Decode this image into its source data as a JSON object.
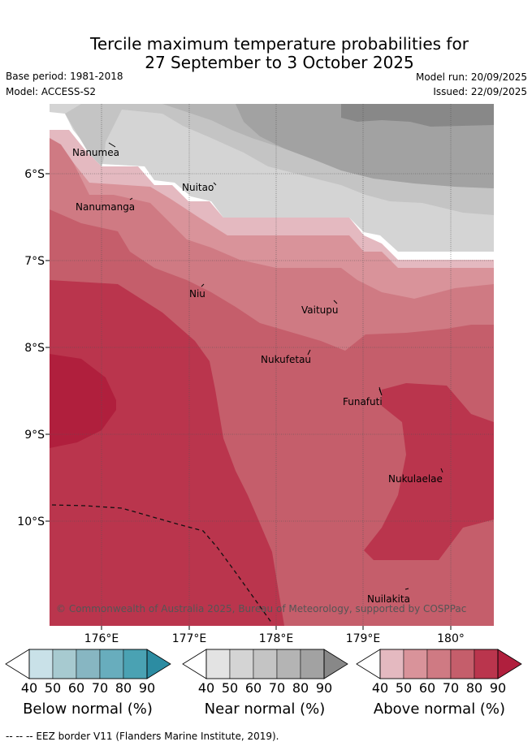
{
  "title": {
    "line1": "Tercile maximum temperature probabilities for",
    "line2": "27 September to 3 October 2025"
  },
  "meta": {
    "base_period": "Base period: 1981-2018",
    "model": "Model: ACCESS-S2",
    "model_run": "Model run: 20/09/2025",
    "issued": "Issued: 22/09/2025"
  },
  "map": {
    "lon_labels": [
      "176°E",
      "177°E",
      "178°E",
      "179°E",
      "180°"
    ],
    "lat_labels": [
      "6°S",
      "7°S",
      "8°S",
      "9°S",
      "10°S"
    ],
    "places": [
      "Nanumea",
      "Nanumanga",
      "Nuitao",
      "Niu",
      "Vaitupu",
      "Nukufetau",
      "Funafuti",
      "Nukulaelae",
      "Nuilakita"
    ],
    "copyright": "© Commonwealth of Australia 2025, Bureau of Meteorology, supported by COSPPac"
  },
  "legend": {
    "ticks": [
      "40",
      "50",
      "60",
      "70",
      "80",
      "90"
    ],
    "below_label": "Below normal (%)",
    "near_label": "Near normal (%)",
    "above_label": "Above normal (%)",
    "below_colors": [
      "#c9e1e8",
      "#a7cad0",
      "#87b6c2",
      "#68adbd",
      "#4aa2b3",
      "#2c8ca2"
    ],
    "near_colors": [
      "#e3e3e3",
      "#d4d4d4",
      "#c4c4c4",
      "#b4b4b4",
      "#a2a2a2",
      "#888888"
    ],
    "above_colors": [
      "#e4b9c0",
      "#d9939a",
      "#cf7a83",
      "#c55e6b",
      "#ba354d",
      "#b01f3d"
    ]
  },
  "footer": {
    "eez": "--  --  -- EEZ border V11 (Flanders Marine Institute, 2019)."
  }
}
